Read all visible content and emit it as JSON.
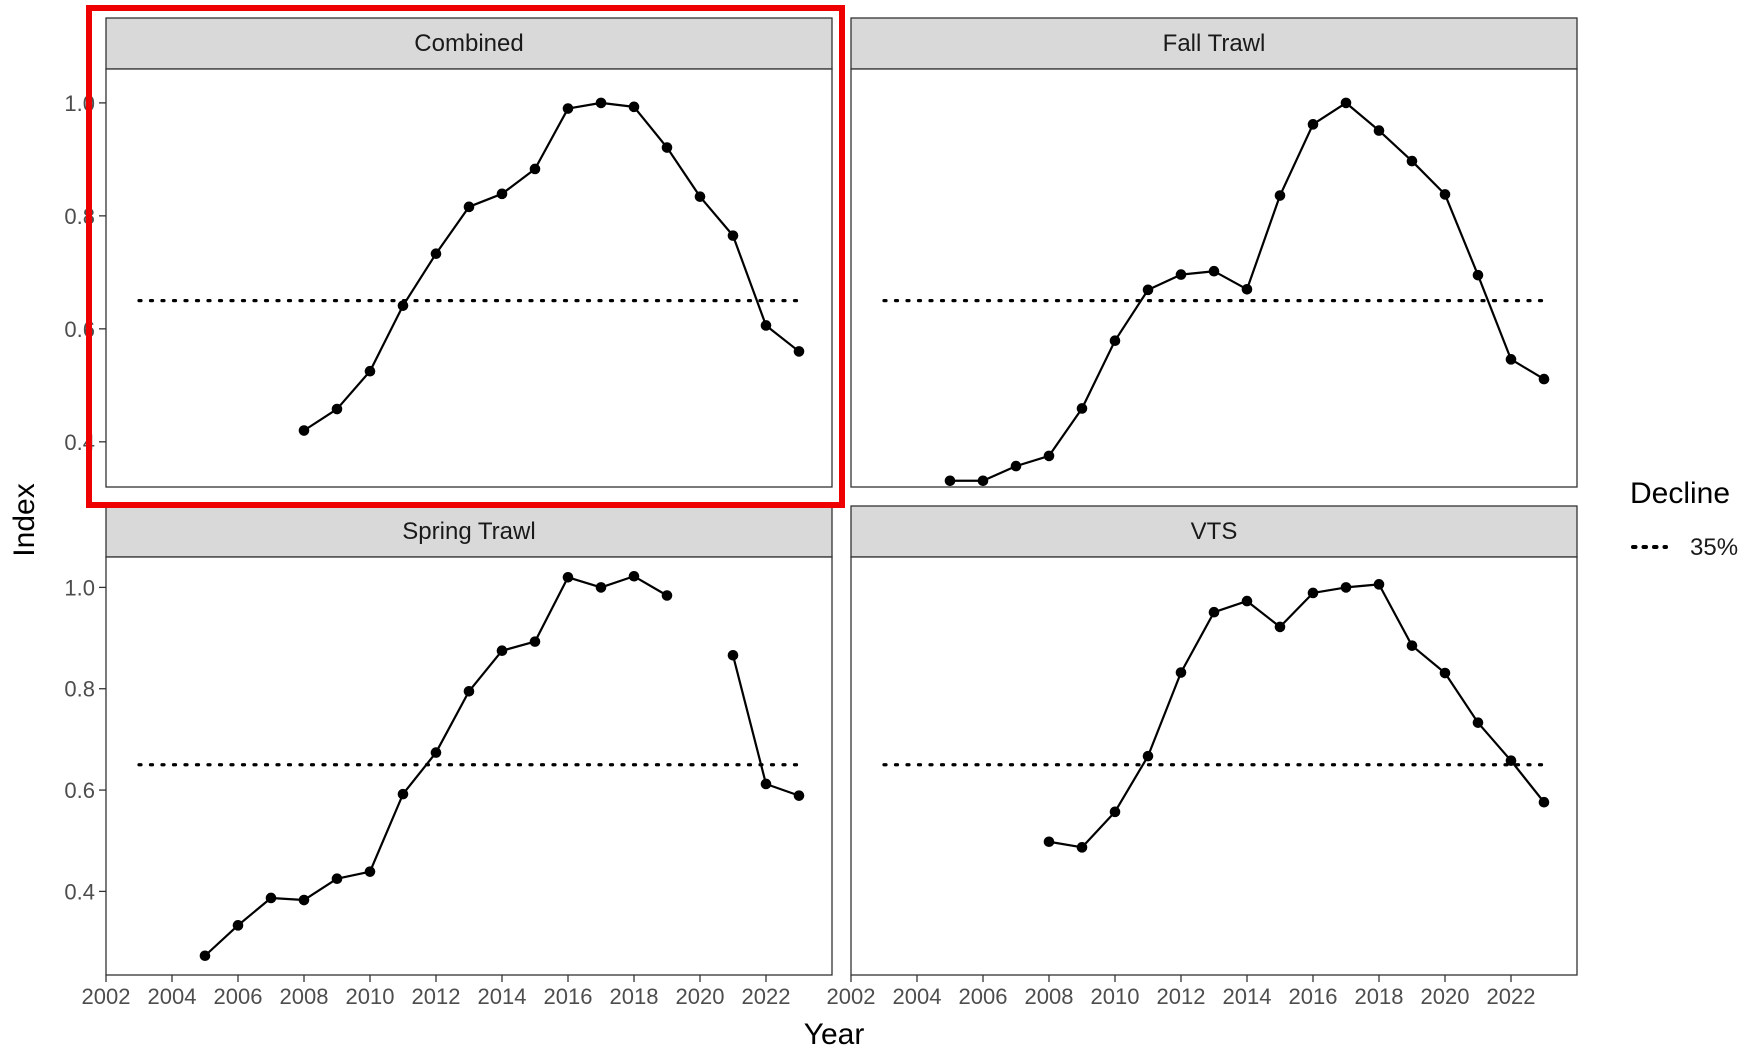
{
  "chart_data": {
    "type": "line",
    "xlabel": "Year",
    "ylabel": "Index",
    "xlim": [
      2002,
      2024
    ],
    "x_ticks": [
      2002,
      2004,
      2006,
      2008,
      2010,
      2012,
      2014,
      2016,
      2018,
      2020,
      2022
    ],
    "y_ticks": [
      0.4,
      0.6,
      0.8,
      1.0
    ],
    "y_tick_labels": [
      "0.4",
      "0.6",
      "0.8",
      "1.0"
    ],
    "reference_line": {
      "y": 0.65,
      "x_range": [
        2003,
        2023
      ],
      "style": "dotted"
    },
    "legend": {
      "title": "Decline",
      "entries": [
        {
          "label": "35%",
          "style": "dotted"
        }
      ],
      "position": "right"
    },
    "highlight": {
      "panel": "Combined",
      "color": "#ee0000"
    },
    "panels": [
      {
        "title": "Combined",
        "ylim": [
          0.32,
          1.06
        ],
        "x": [
          2008,
          2009,
          2010,
          2011,
          2012,
          2013,
          2014,
          2015,
          2016,
          2017,
          2018,
          2019,
          2020,
          2021,
          2022,
          2023
        ],
        "y": [
          0.42,
          0.458,
          0.525,
          0.641,
          0.733,
          0.816,
          0.839,
          0.883,
          0.99,
          1.0,
          0.993,
          0.921,
          0.834,
          0.765,
          0.606,
          0.56
        ]
      },
      {
        "title": "Fall Trawl",
        "ylim": [
          0.32,
          1.06
        ],
        "x": [
          2005,
          2006,
          2007,
          2008,
          2009,
          2010,
          2011,
          2012,
          2013,
          2014,
          2015,
          2016,
          2017,
          2018,
          2019,
          2020,
          2021,
          2022,
          2023
        ],
        "y": [
          0.331,
          0.331,
          0.357,
          0.375,
          0.459,
          0.579,
          0.669,
          0.696,
          0.702,
          0.67,
          0.836,
          0.962,
          1.0,
          0.951,
          0.897,
          0.838,
          0.695,
          0.546,
          0.511
        ]
      },
      {
        "title": "Spring Trawl",
        "ylim": [
          0.235,
          1.06
        ],
        "x": [
          2005,
          2006,
          2007,
          2008,
          2009,
          2010,
          2011,
          2012,
          2013,
          2014,
          2015,
          2016,
          2017,
          2018,
          2019,
          null,
          2021,
          2022,
          2023
        ],
        "y": [
          0.273,
          0.333,
          0.387,
          0.383,
          0.425,
          0.439,
          0.592,
          0.674,
          0.795,
          0.875,
          0.893,
          1.02,
          1.0,
          1.022,
          0.984,
          null,
          0.866,
          0.612,
          0.589
        ]
      },
      {
        "title": "VTS",
        "ylim": [
          0.235,
          1.06
        ],
        "x": [
          2008,
          2009,
          2010,
          2011,
          2012,
          2013,
          2014,
          2015,
          2016,
          2017,
          2018,
          2019,
          2020,
          2021,
          2022,
          2023
        ],
        "y": [
          0.498,
          0.487,
          0.557,
          0.667,
          0.832,
          0.951,
          0.973,
          0.922,
          0.989,
          1.0,
          1.006,
          0.885,
          0.831,
          0.733,
          0.658,
          0.576
        ]
      }
    ]
  }
}
